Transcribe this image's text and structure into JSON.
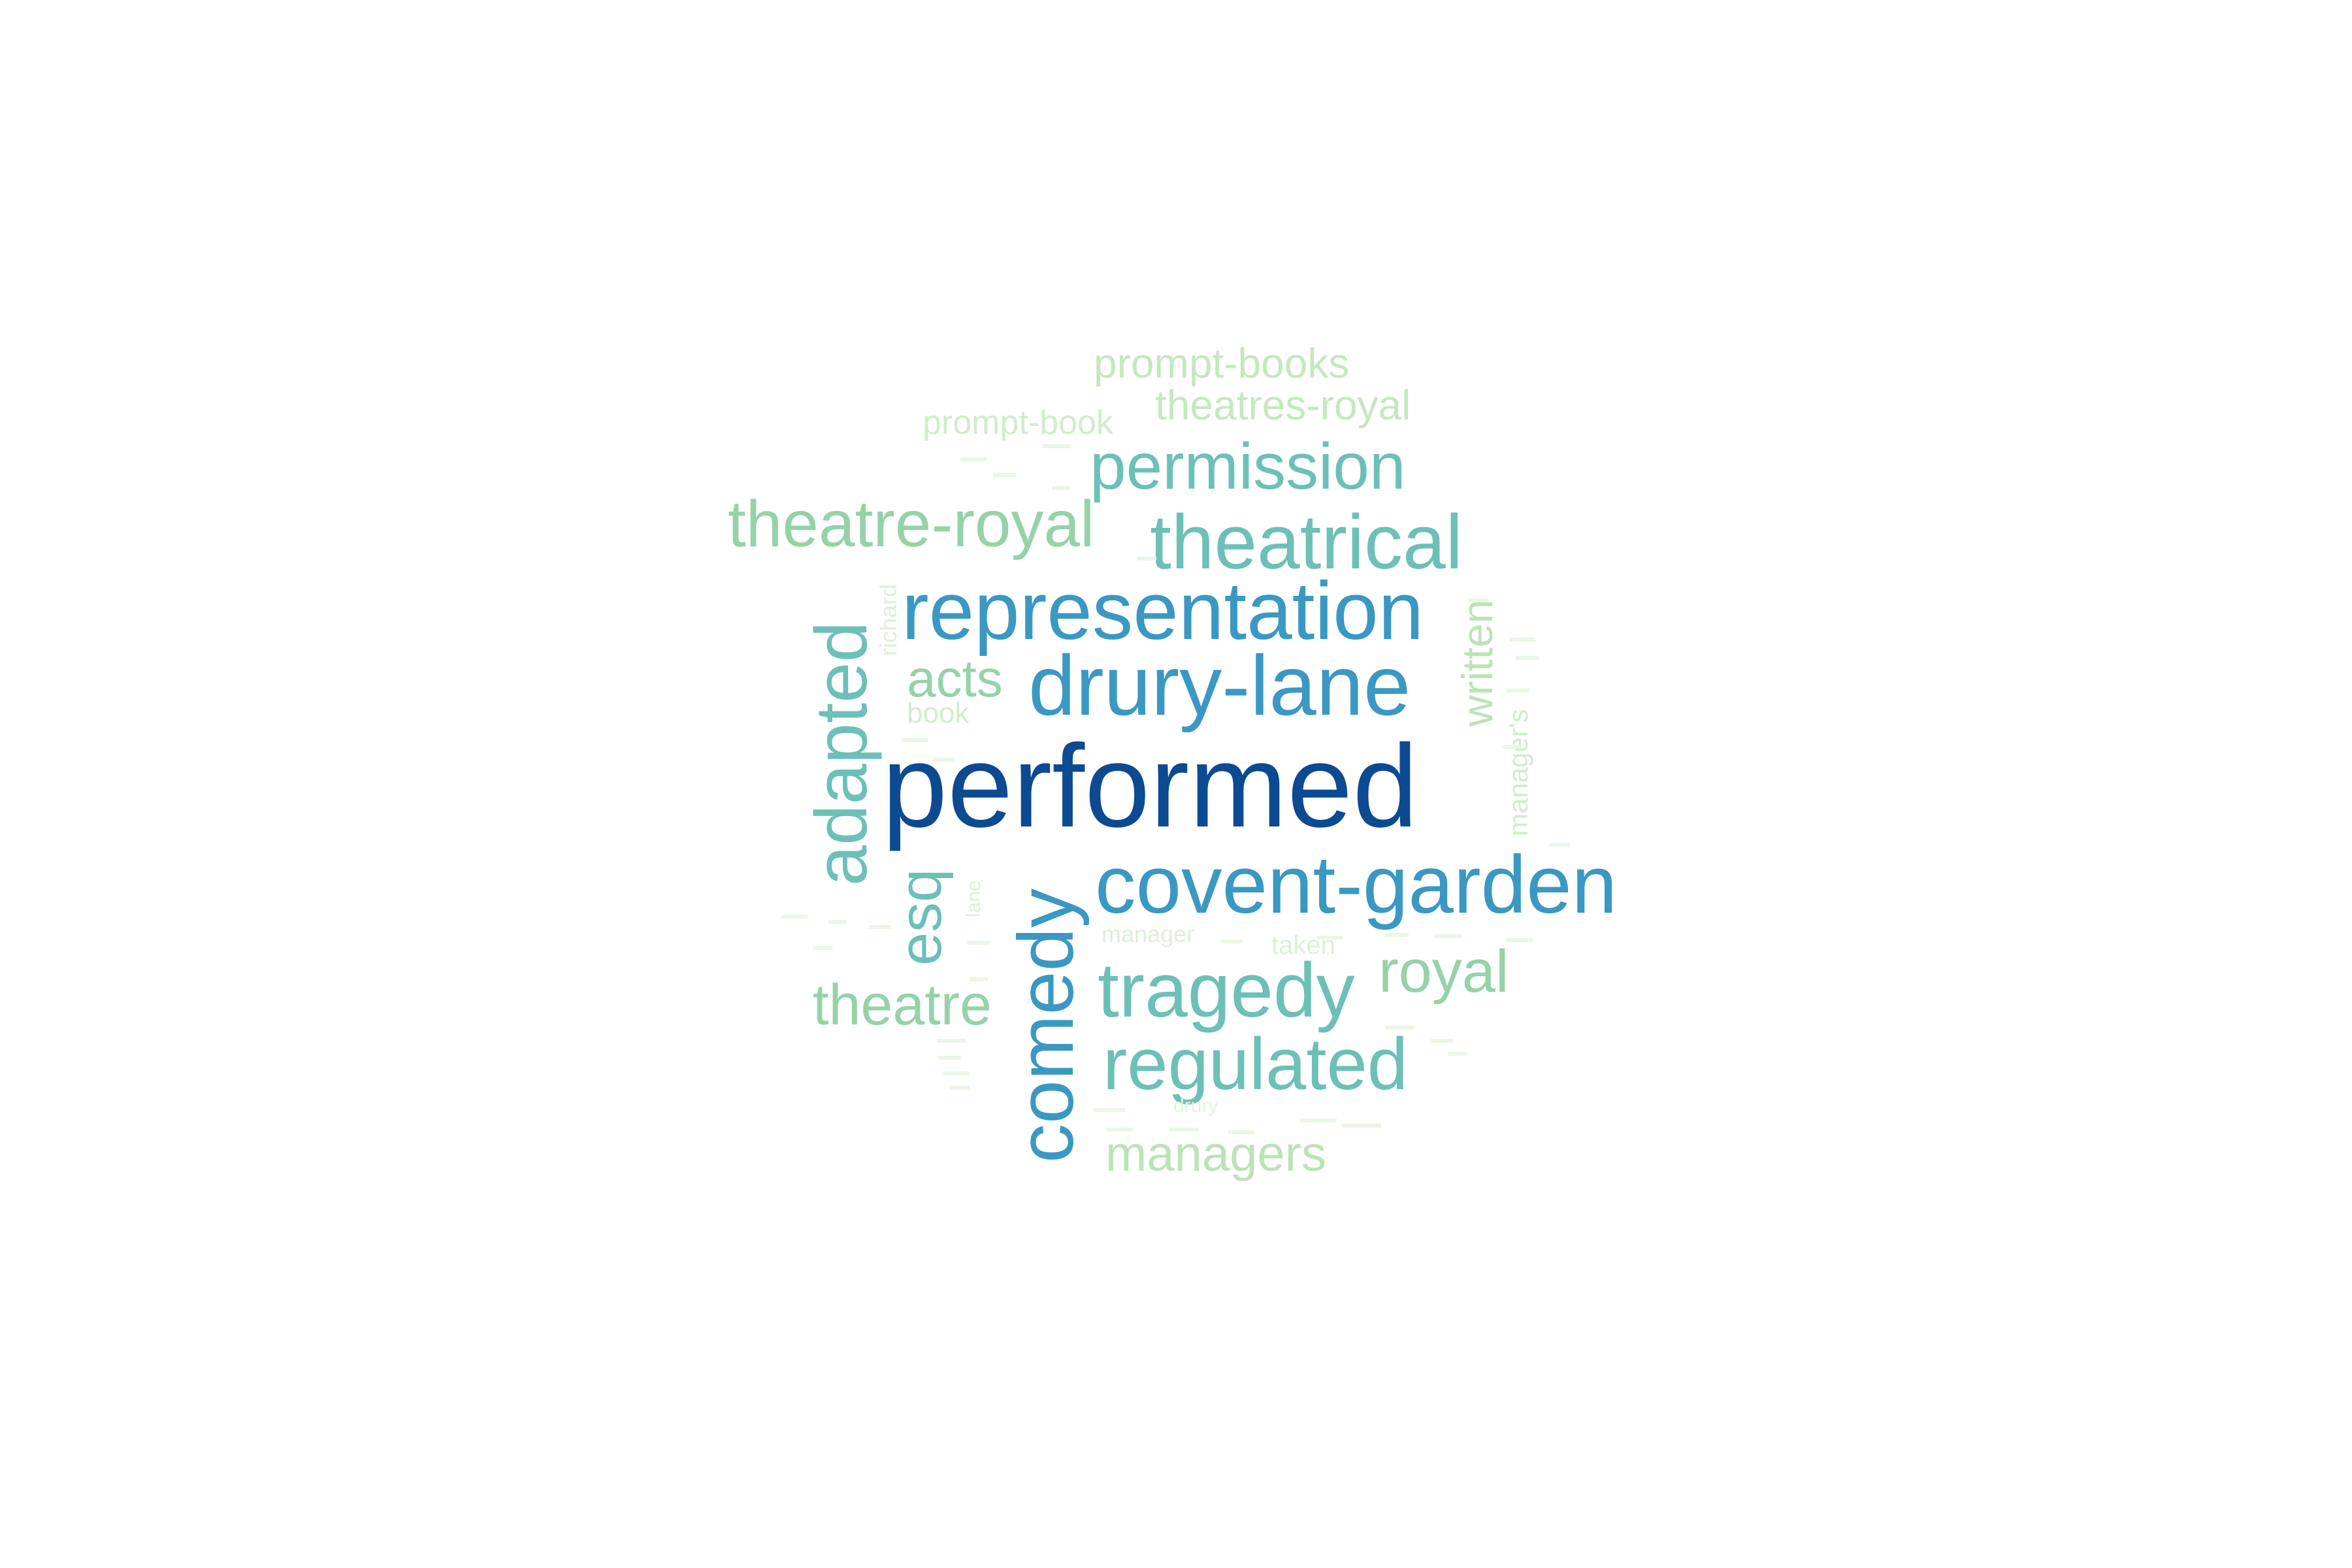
{
  "words": [
    {
      "text": "performed",
      "color": "#0c4a91"
    },
    {
      "text": "drury-lane",
      "color": "#3a98c3"
    },
    {
      "text": "representation",
      "color": "#3a98c3"
    },
    {
      "text": "covent-garden",
      "color": "#3a98c3"
    },
    {
      "text": "comedy",
      "color": "#3a98c3"
    },
    {
      "text": "theatrical",
      "color": "#6cc0b6"
    },
    {
      "text": "permission",
      "color": "#6cc0b6"
    },
    {
      "text": "tragedy",
      "color": "#6cc0b6"
    },
    {
      "text": "regulated",
      "color": "#6cc0b6"
    },
    {
      "text": "adapted",
      "color": "#6cc0b6"
    },
    {
      "text": "esq",
      "color": "#6cc0b6"
    },
    {
      "text": "theatre-royal",
      "color": "#96d2a8"
    },
    {
      "text": "royal",
      "color": "#96d2a8"
    },
    {
      "text": "theatre",
      "color": "#96d2a8"
    },
    {
      "text": "acts",
      "color": "#96d2a8"
    },
    {
      "text": "written",
      "color": "#bce3b6"
    },
    {
      "text": "managers",
      "color": "#bce3b6"
    },
    {
      "text": "prompt-books",
      "color": "#c5e8bf"
    },
    {
      "text": "theatres-royal",
      "color": "#c5e8bf"
    },
    {
      "text": "prompt-book",
      "color": "#d2eccb"
    },
    {
      "text": "book",
      "color": "#d2eccb"
    },
    {
      "text": "manager's",
      "color": "#d2eccb"
    },
    {
      "text": "richard",
      "color": "#dcf0d6"
    },
    {
      "text": "lane",
      "color": "#dcf0d6"
    },
    {
      "text": "manager",
      "color": "#dcf0d6"
    },
    {
      "text": "taken",
      "color": "#dcf0d6"
    },
    {
      "text": "drury",
      "color": "#e4f4e0"
    }
  ]
}
